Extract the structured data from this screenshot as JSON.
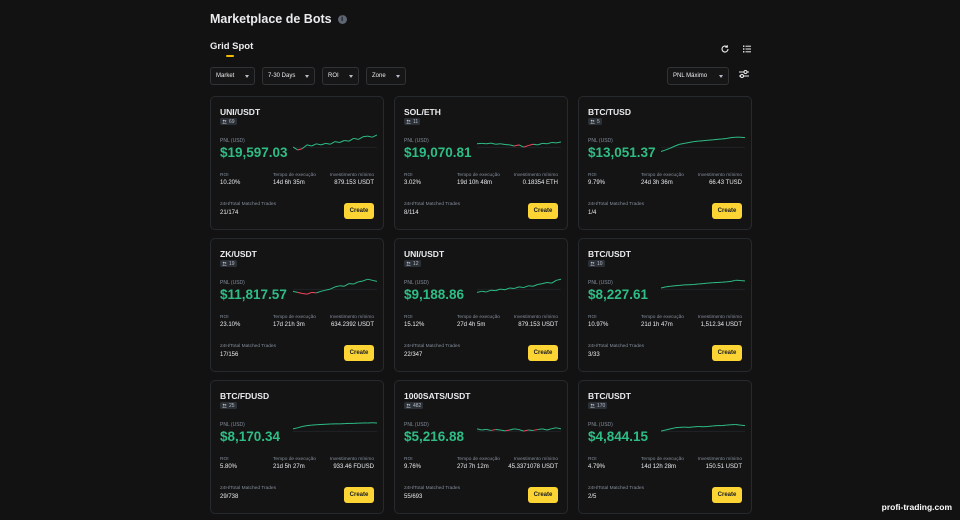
{
  "header": {
    "title": "Marketplace de Bots",
    "info_icon": "info-icon"
  },
  "tabs": [
    {
      "label": "Grid Spot",
      "active": true
    }
  ],
  "toolbar": {
    "refresh_icon": "refresh-icon",
    "list_icon": "list-view-icon",
    "filter_icon": "sliders-icon"
  },
  "filters": {
    "market": "Market",
    "duration": "7-30 Days",
    "roi": "ROI",
    "zone": "Zone",
    "sort": "PNL Máximo"
  },
  "colors": {
    "accent": "#fcd535",
    "positive": "#2ebd85",
    "negative": "#f6465d",
    "background": "#121212"
  },
  "labels": {
    "pnl": "PNL (USD)",
    "roi": "ROI",
    "runtime": "Tempo de execução",
    "min_investment": "Investimento mínimo",
    "trades": "24H/Total Matched Trades",
    "create": "Create"
  },
  "cards": [
    {
      "pair": "UNI/USDT",
      "users": "69",
      "pnl": "$19,597.03",
      "roi": "10.20%",
      "runtime": "14d 6h 35m",
      "min_inv": "879.153 USDT",
      "trades": "21/174",
      "spark": [
        0.45,
        0.32,
        0.38,
        0.55,
        0.5,
        0.6,
        0.55,
        0.62,
        0.58,
        0.7,
        0.66,
        0.75,
        0.72,
        0.85,
        0.8,
        0.92,
        0.95,
        0.9,
        1.0
      ]
    },
    {
      "pair": "SOL/ETH",
      "users": "11",
      "pnl": "$19,070.81",
      "roi": "3.02%",
      "runtime": "19d 10h 48m",
      "min_inv": "0.18354 ETH",
      "trades": "8/114",
      "spark": [
        0.6,
        0.62,
        0.6,
        0.63,
        0.58,
        0.6,
        0.57,
        0.55,
        0.5,
        0.55,
        0.45,
        0.52,
        0.58,
        0.55,
        0.62,
        0.6,
        0.66,
        0.64,
        0.68
      ]
    },
    {
      "pair": "BTC/TUSD",
      "users": "5",
      "pnl": "$13,051.37",
      "roi": "9.79%",
      "runtime": "24d 3h 36m",
      "min_inv": "66.43 TUSD",
      "trades": "1/4",
      "spark": [
        0.25,
        0.32,
        0.4,
        0.5,
        0.58,
        0.62,
        0.66,
        0.7,
        0.72,
        0.74,
        0.76,
        0.78,
        0.8,
        0.82,
        0.84,
        0.88,
        0.9,
        0.9,
        0.88
      ]
    },
    {
      "pair": "ZK/USDT",
      "users": "19",
      "pnl": "$11,817.57",
      "roi": "23.10%",
      "runtime": "17d 21h 3m",
      "min_inv": "634.2392 USDT",
      "trades": "17/156",
      "spark": [
        0.35,
        0.3,
        0.25,
        0.22,
        0.3,
        0.28,
        0.35,
        0.4,
        0.45,
        0.55,
        0.6,
        0.58,
        0.7,
        0.68,
        0.78,
        0.82,
        0.9,
        0.85,
        0.8
      ]
    },
    {
      "pair": "UNI/USDT",
      "users": "12",
      "pnl": "$9,188.86",
      "roi": "15.12%",
      "runtime": "27d 4h 5m",
      "min_inv": "879.153 USDT",
      "trades": "22/347",
      "spark": [
        0.3,
        0.35,
        0.32,
        0.4,
        0.38,
        0.45,
        0.42,
        0.5,
        0.48,
        0.55,
        0.52,
        0.6,
        0.58,
        0.66,
        0.7,
        0.75,
        0.72,
        0.85,
        0.9
      ]
    },
    {
      "pair": "BTC/USDT",
      "users": "10",
      "pnl": "$8,227.61",
      "roi": "10.97%",
      "runtime": "21d 1h 47m",
      "min_inv": "1,512.34 USDT",
      "trades": "3/33",
      "spark": [
        0.5,
        0.55,
        0.58,
        0.6,
        0.62,
        0.64,
        0.65,
        0.66,
        0.68,
        0.7,
        0.72,
        0.74,
        0.75,
        0.76,
        0.78,
        0.8,
        0.85,
        0.84,
        0.82
      ]
    },
    {
      "pair": "BTC/FDUSD",
      "users": "25",
      "pnl": "$8,170.34",
      "roi": "5.80%",
      "runtime": "21d 5h 27m",
      "min_inv": "933.46 FDUSD",
      "trades": "29/738",
      "spark": [
        0.55,
        0.6,
        0.66,
        0.7,
        0.72,
        0.74,
        0.75,
        0.76,
        0.77,
        0.78,
        0.78,
        0.79,
        0.8,
        0.8,
        0.81,
        0.82,
        0.82,
        0.83,
        0.82
      ]
    },
    {
      "pair": "1000SATS/USDT",
      "users": "482",
      "pnl": "$5,216.88",
      "roi": "9.76%",
      "runtime": "27d 7h 12m",
      "min_inv": "45.3371078 USDT",
      "trades": "55/693",
      "spark": [
        0.55,
        0.5,
        0.53,
        0.48,
        0.52,
        0.5,
        0.46,
        0.5,
        0.55,
        0.52,
        0.45,
        0.5,
        0.48,
        0.52,
        0.55,
        0.5,
        0.56,
        0.6,
        0.55
      ]
    },
    {
      "pair": "BTC/USDT",
      "users": "170",
      "pnl": "$4,844.15",
      "roi": "4.79%",
      "runtime": "14d 12h 28m",
      "min_inv": "150.51 USDT",
      "trades": "2/5",
      "spark": [
        0.45,
        0.5,
        0.55,
        0.6,
        0.62,
        0.63,
        0.62,
        0.64,
        0.66,
        0.65,
        0.66,
        0.68,
        0.7,
        0.7,
        0.72,
        0.74,
        0.75,
        0.72,
        0.7
      ]
    }
  ],
  "watermark": "profi-trading.com"
}
